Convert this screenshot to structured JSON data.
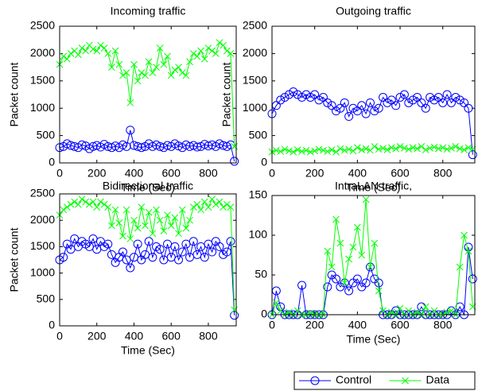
{
  "chart_data": [
    {
      "type": "line",
      "title": "Incoming traffic",
      "xlabel": "Time (Sec)",
      "ylabel": "Packet count",
      "xlim": [
        0,
        950
      ],
      "xticks": [
        0,
        200,
        400,
        600,
        800
      ],
      "ylim": [
        0,
        2500
      ],
      "yticks": [
        0,
        500,
        1000,
        1500,
        2000,
        2500
      ],
      "x": [
        0,
        20,
        40,
        60,
        80,
        100,
        120,
        140,
        160,
        180,
        200,
        220,
        240,
        260,
        280,
        300,
        320,
        340,
        360,
        380,
        400,
        420,
        440,
        460,
        480,
        500,
        520,
        540,
        560,
        580,
        600,
        620,
        640,
        660,
        680,
        700,
        720,
        740,
        760,
        780,
        800,
        820,
        840,
        860,
        880,
        900,
        920,
        940
      ],
      "series": [
        {
          "color": "#0000ff",
          "marker": "o",
          "values": [
            280,
            300,
            350,
            320,
            300,
            280,
            330,
            310,
            260,
            300,
            320,
            290,
            340,
            300,
            280,
            310,
            280,
            330,
            300,
            600,
            320,
            300,
            280,
            300,
            350,
            300,
            330,
            300,
            280,
            320,
            300,
            350,
            310,
            280,
            330,
            300,
            320,
            290,
            300,
            340,
            310,
            330,
            300,
            350,
            320,
            300,
            330,
            30
          ]
        },
        {
          "color": "#00ff00",
          "marker": "x",
          "values": [
            1800,
            1950,
            1900,
            2000,
            2050,
            1980,
            2100,
            2050,
            2150,
            2080,
            2050,
            2150,
            2100,
            2000,
            1750,
            2050,
            1800,
            1600,
            1650,
            1100,
            1800,
            1500,
            1650,
            1600,
            1850,
            1650,
            1750,
            2100,
            1800,
            1950,
            1600,
            1700,
            1750,
            1650,
            1600,
            1850,
            2000,
            1950,
            2050,
            1900,
            2100,
            2050,
            2000,
            2200,
            2150,
            2050,
            2000,
            300
          ]
        }
      ]
    },
    {
      "type": "line",
      "title": "Outgoing traffic",
      "xlabel": "Time (Sec)",
      "ylabel": "Packet count",
      "xlim": [
        0,
        950
      ],
      "xticks": [
        0,
        200,
        400,
        600,
        800
      ],
      "ylim": [
        0,
        2500
      ],
      "yticks": [
        0,
        500,
        1000,
        1500,
        2000,
        2500
      ],
      "x": [
        0,
        20,
        40,
        60,
        80,
        100,
        120,
        140,
        160,
        180,
        200,
        220,
        240,
        260,
        280,
        300,
        320,
        340,
        360,
        380,
        400,
        420,
        440,
        460,
        480,
        500,
        520,
        540,
        560,
        580,
        600,
        620,
        640,
        660,
        680,
        700,
        720,
        740,
        760,
        780,
        800,
        820,
        840,
        860,
        880,
        900,
        920,
        940
      ],
      "series": [
        {
          "color": "#0000ff",
          "marker": "o",
          "values": [
            900,
            1050,
            1150,
            1200,
            1250,
            1300,
            1250,
            1200,
            1250,
            1200,
            1250,
            1150,
            1200,
            1100,
            1050,
            950,
            1000,
            1100,
            850,
            1000,
            950,
            1050,
            900,
            1100,
            950,
            1000,
            1200,
            1100,
            1150,
            1050,
            1200,
            1250,
            1100,
            1150,
            1200,
            1100,
            1000,
            1200,
            1150,
            1200,
            1100,
            1250,
            1100,
            1200,
            1150,
            1100,
            1000,
            150
          ]
        },
        {
          "color": "#00ff00",
          "marker": "x",
          "values": [
            200,
            230,
            210,
            250,
            220,
            200,
            240,
            210,
            230,
            200,
            220,
            250,
            230,
            210,
            240,
            200,
            260,
            230,
            250,
            220,
            280,
            240,
            260,
            230,
            300,
            250,
            270,
            240,
            280,
            260,
            300,
            270,
            250,
            280,
            260,
            300,
            240,
            270,
            290,
            260,
            280,
            250,
            270,
            300,
            260,
            240,
            280,
            250
          ]
        }
      ]
    },
    {
      "type": "line",
      "title": "Bidirectional traffic",
      "xlabel": "Time (Sec)",
      "ylabel": "Packet count",
      "xlim": [
        0,
        950
      ],
      "xticks": [
        0,
        200,
        400,
        600,
        800
      ],
      "ylim": [
        0,
        2500
      ],
      "yticks": [
        0,
        500,
        1000,
        1500,
        2000,
        2500
      ],
      "x": [
        0,
        20,
        40,
        60,
        80,
        100,
        120,
        140,
        160,
        180,
        200,
        220,
        240,
        260,
        280,
        300,
        320,
        340,
        360,
        380,
        400,
        420,
        440,
        460,
        480,
        500,
        520,
        540,
        560,
        580,
        600,
        620,
        640,
        660,
        680,
        700,
        720,
        740,
        760,
        780,
        800,
        820,
        840,
        860,
        880,
        900,
        920,
        940
      ],
      "series": [
        {
          "color": "#0000ff",
          "marker": "o",
          "values": [
            1250,
            1300,
            1550,
            1450,
            1650,
            1500,
            1600,
            1550,
            1500,
            1650,
            1450,
            1600,
            1500,
            1550,
            1350,
            1200,
            1300,
            1400,
            1250,
            1100,
            1300,
            1550,
            1250,
            1350,
            1600,
            1300,
            1500,
            1450,
            1250,
            1550,
            1300,
            1500,
            1250,
            1400,
            1550,
            1300,
            1600,
            1350,
            1500,
            1300,
            1550,
            1400,
            1600,
            1500,
            1350,
            1400,
            1600,
            200
          ]
        },
        {
          "color": "#00ff00",
          "marker": "x",
          "values": [
            2100,
            2200,
            2250,
            2300,
            2350,
            2300,
            2400,
            2350,
            2300,
            2350,
            2250,
            2350,
            2300,
            2250,
            1900,
            2200,
            1950,
            1700,
            2200,
            1650,
            2000,
            1850,
            2250,
            1900,
            2150,
            1750,
            2200,
            2000,
            1800,
            2100,
            1900,
            2050,
            1750,
            2200,
            1850,
            2000,
            2250,
            2300,
            2200,
            2350,
            2250,
            2400,
            2300,
            2350,
            2250,
            2300,
            2250,
            300
          ]
        }
      ]
    },
    {
      "type": "line",
      "title": "IntraLAN traffic,",
      "xlabel": "Time (Sec)",
      "xlim": [
        0,
        950
      ],
      "xticks": [
        0,
        200,
        400,
        600,
        800
      ],
      "ylim": [
        0,
        150
      ],
      "yticks": [
        0,
        50,
        100,
        150
      ],
      "legend": "bottom",
      "x": [
        0,
        20,
        40,
        60,
        80,
        100,
        120,
        140,
        160,
        180,
        200,
        220,
        240,
        260,
        280,
        300,
        320,
        340,
        360,
        380,
        400,
        420,
        440,
        460,
        480,
        500,
        520,
        540,
        560,
        580,
        600,
        620,
        640,
        660,
        680,
        700,
        720,
        740,
        760,
        780,
        800,
        820,
        840,
        860,
        880,
        900,
        920,
        940
      ],
      "series": [
        {
          "name": "Control",
          "color": "#0000ff",
          "marker": "o",
          "values": [
            0,
            30,
            10,
            0,
            0,
            0,
            0,
            37,
            0,
            0,
            0,
            0,
            0,
            35,
            50,
            45,
            35,
            40,
            30,
            40,
            45,
            35,
            40,
            60,
            45,
            40,
            0,
            0,
            0,
            5,
            0,
            0,
            0,
            0,
            0,
            10,
            0,
            0,
            0,
            0,
            0,
            0,
            5,
            0,
            10,
            0,
            85,
            45
          ]
        },
        {
          "name": "Data",
          "color": "#00ff00",
          "marker": "x",
          "values": [
            0,
            15,
            5,
            0,
            3,
            0,
            5,
            0,
            0,
            2,
            0,
            0,
            0,
            80,
            60,
            120,
            90,
            40,
            70,
            85,
            110,
            75,
            145,
            60,
            90,
            30,
            5,
            0,
            3,
            0,
            8,
            0,
            5,
            0,
            3,
            0,
            10,
            0,
            5,
            0,
            0,
            3,
            5,
            0,
            60,
            100,
            80,
            10
          ]
        }
      ]
    }
  ]
}
